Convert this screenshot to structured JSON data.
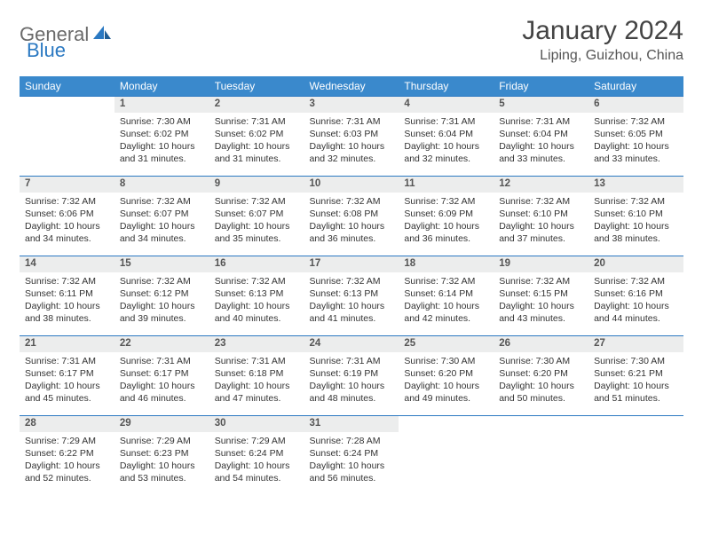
{
  "logo": {
    "part1": "General",
    "part2": "Blue"
  },
  "title": "January 2024",
  "location": "Liping, Guizhou, China",
  "colors": {
    "header_bg": "#3a89cc",
    "header_text": "#ffffff",
    "daynum_bg": "#eceded",
    "border": "#2b79c2",
    "text": "#333333",
    "logo_gray": "#6a6a6a",
    "logo_blue": "#2b79c2"
  },
  "weekdays": [
    "Sunday",
    "Monday",
    "Tuesday",
    "Wednesday",
    "Thursday",
    "Friday",
    "Saturday"
  ],
  "weeks": [
    {
      "nums": [
        "",
        "1",
        "2",
        "3",
        "4",
        "5",
        "6"
      ],
      "cells": [
        null,
        {
          "sunrise": "7:30 AM",
          "sunset": "6:02 PM",
          "daylight": "10 hours and 31 minutes."
        },
        {
          "sunrise": "7:31 AM",
          "sunset": "6:02 PM",
          "daylight": "10 hours and 31 minutes."
        },
        {
          "sunrise": "7:31 AM",
          "sunset": "6:03 PM",
          "daylight": "10 hours and 32 minutes."
        },
        {
          "sunrise": "7:31 AM",
          "sunset": "6:04 PM",
          "daylight": "10 hours and 32 minutes."
        },
        {
          "sunrise": "7:31 AM",
          "sunset": "6:04 PM",
          "daylight": "10 hours and 33 minutes."
        },
        {
          "sunrise": "7:32 AM",
          "sunset": "6:05 PM",
          "daylight": "10 hours and 33 minutes."
        }
      ]
    },
    {
      "nums": [
        "7",
        "8",
        "9",
        "10",
        "11",
        "12",
        "13"
      ],
      "cells": [
        {
          "sunrise": "7:32 AM",
          "sunset": "6:06 PM",
          "daylight": "10 hours and 34 minutes."
        },
        {
          "sunrise": "7:32 AM",
          "sunset": "6:07 PM",
          "daylight": "10 hours and 34 minutes."
        },
        {
          "sunrise": "7:32 AM",
          "sunset": "6:07 PM",
          "daylight": "10 hours and 35 minutes."
        },
        {
          "sunrise": "7:32 AM",
          "sunset": "6:08 PM",
          "daylight": "10 hours and 36 minutes."
        },
        {
          "sunrise": "7:32 AM",
          "sunset": "6:09 PM",
          "daylight": "10 hours and 36 minutes."
        },
        {
          "sunrise": "7:32 AM",
          "sunset": "6:10 PM",
          "daylight": "10 hours and 37 minutes."
        },
        {
          "sunrise": "7:32 AM",
          "sunset": "6:10 PM",
          "daylight": "10 hours and 38 minutes."
        }
      ]
    },
    {
      "nums": [
        "14",
        "15",
        "16",
        "17",
        "18",
        "19",
        "20"
      ],
      "cells": [
        {
          "sunrise": "7:32 AM",
          "sunset": "6:11 PM",
          "daylight": "10 hours and 38 minutes."
        },
        {
          "sunrise": "7:32 AM",
          "sunset": "6:12 PM",
          "daylight": "10 hours and 39 minutes."
        },
        {
          "sunrise": "7:32 AM",
          "sunset": "6:13 PM",
          "daylight": "10 hours and 40 minutes."
        },
        {
          "sunrise": "7:32 AM",
          "sunset": "6:13 PM",
          "daylight": "10 hours and 41 minutes."
        },
        {
          "sunrise": "7:32 AM",
          "sunset": "6:14 PM",
          "daylight": "10 hours and 42 minutes."
        },
        {
          "sunrise": "7:32 AM",
          "sunset": "6:15 PM",
          "daylight": "10 hours and 43 minutes."
        },
        {
          "sunrise": "7:32 AM",
          "sunset": "6:16 PM",
          "daylight": "10 hours and 44 minutes."
        }
      ]
    },
    {
      "nums": [
        "21",
        "22",
        "23",
        "24",
        "25",
        "26",
        "27"
      ],
      "cells": [
        {
          "sunrise": "7:31 AM",
          "sunset": "6:17 PM",
          "daylight": "10 hours and 45 minutes."
        },
        {
          "sunrise": "7:31 AM",
          "sunset": "6:17 PM",
          "daylight": "10 hours and 46 minutes."
        },
        {
          "sunrise": "7:31 AM",
          "sunset": "6:18 PM",
          "daylight": "10 hours and 47 minutes."
        },
        {
          "sunrise": "7:31 AM",
          "sunset": "6:19 PM",
          "daylight": "10 hours and 48 minutes."
        },
        {
          "sunrise": "7:30 AM",
          "sunset": "6:20 PM",
          "daylight": "10 hours and 49 minutes."
        },
        {
          "sunrise": "7:30 AM",
          "sunset": "6:20 PM",
          "daylight": "10 hours and 50 minutes."
        },
        {
          "sunrise": "7:30 AM",
          "sunset": "6:21 PM",
          "daylight": "10 hours and 51 minutes."
        }
      ]
    },
    {
      "nums": [
        "28",
        "29",
        "30",
        "31",
        "",
        "",
        ""
      ],
      "cells": [
        {
          "sunrise": "7:29 AM",
          "sunset": "6:22 PM",
          "daylight": "10 hours and 52 minutes."
        },
        {
          "sunrise": "7:29 AM",
          "sunset": "6:23 PM",
          "daylight": "10 hours and 53 minutes."
        },
        {
          "sunrise": "7:29 AM",
          "sunset": "6:24 PM",
          "daylight": "10 hours and 54 minutes."
        },
        {
          "sunrise": "7:28 AM",
          "sunset": "6:24 PM",
          "daylight": "10 hours and 56 minutes."
        },
        null,
        null,
        null
      ]
    }
  ],
  "labels": {
    "sunrise": "Sunrise: ",
    "sunset": "Sunset: ",
    "daylight": "Daylight: "
  }
}
